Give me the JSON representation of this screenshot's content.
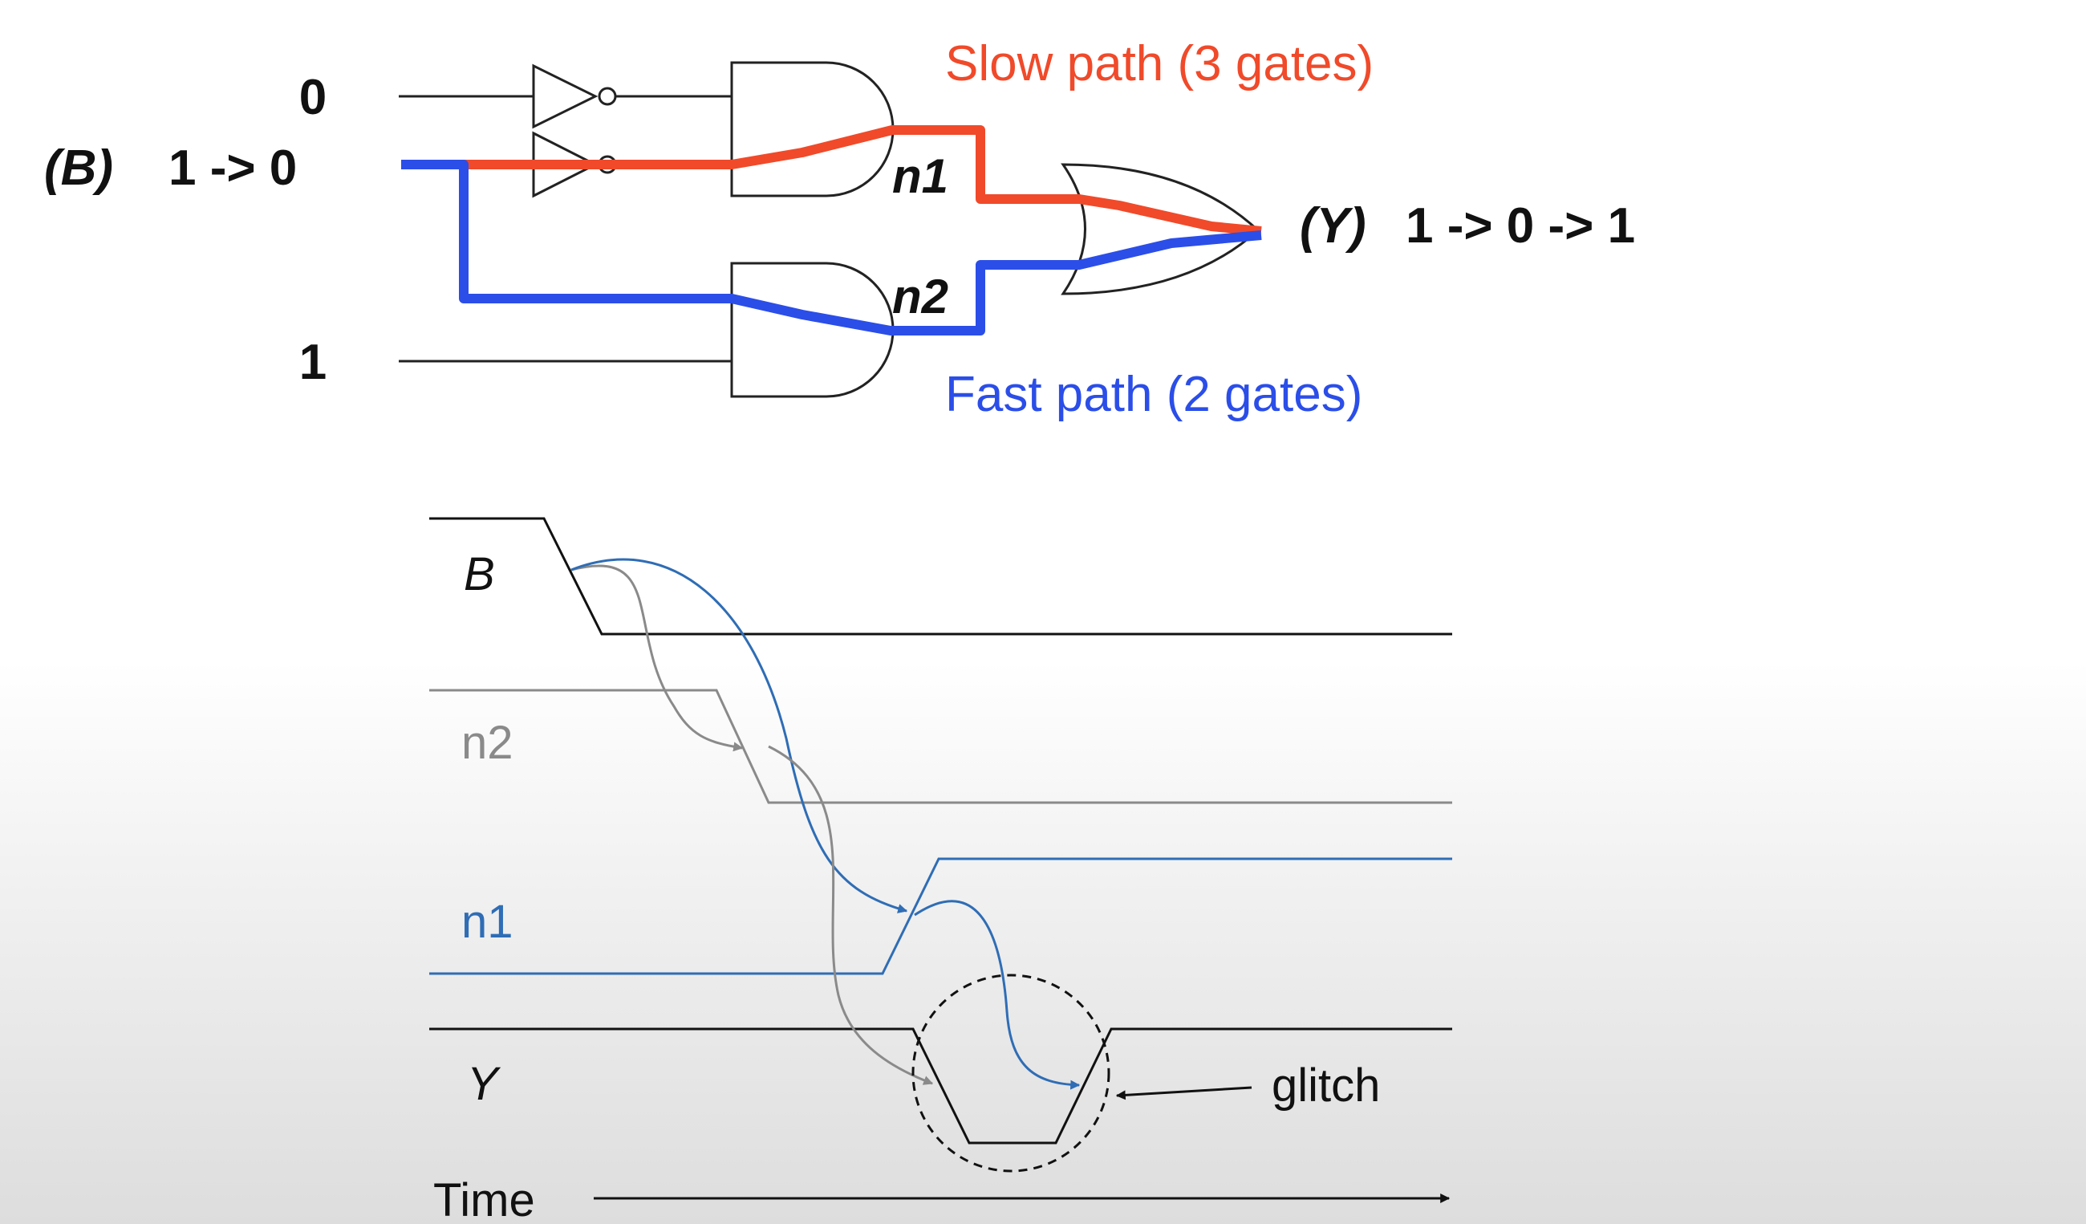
{
  "circuit": {
    "input_top_label": "0",
    "input_b_tag": "(B)",
    "input_b_value": "1 -> 0",
    "input_bottom_label": "1",
    "node_n1_label": "n1",
    "node_n2_label": "n2",
    "output_tag": "(Y)",
    "output_value": "1 -> 0 -> 1",
    "slow_path_label": "Slow path (3 gates)",
    "fast_path_label": "Fast path (2 gates)"
  },
  "timing": {
    "signal_b_label": "B",
    "signal_n2_label": "n2",
    "signal_n1_label": "n1",
    "signal_y_label": "Y",
    "glitch_label": "glitch",
    "time_axis_label": "Time"
  },
  "colors": {
    "slow_path": "#f04a2a",
    "fast_path": "#2b4ee8",
    "n1_trace": "#2f6db5",
    "n2_trace": "#8a8a8a",
    "wire": "#222222"
  }
}
